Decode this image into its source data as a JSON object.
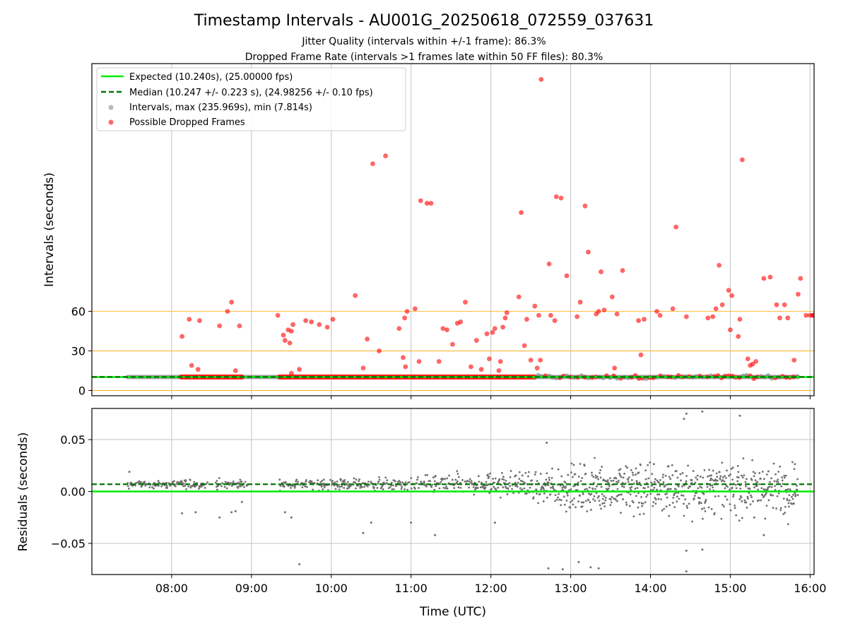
{
  "colors": {
    "expected": "#00ee00",
    "median": "#007700",
    "intervals": "#808080",
    "dropped": "#ff0000",
    "threshold": "#ffb833",
    "grid": "#c8c8c8"
  },
  "chart_data": [
    {
      "type": "scatter",
      "title": "Timestamp Intervals - AU001G_20250618_072559_037631",
      "subtitle_lines": [
        "Jitter Quality (intervals within +/-1 frame): 86.3%",
        "Dropped Frame Rate (intervals >1 frames late within 50 FF files): 80.3%"
      ],
      "xlabel": "",
      "ylabel": "Intervals (seconds)",
      "x_unit": "hours UTC",
      "xlim": [
        7.0,
        16.05
      ],
      "ylim": [
        -4,
        248
      ],
      "yticks": [
        0,
        30,
        60
      ],
      "ytick_labels": [
        "0",
        "30",
        "60"
      ],
      "grid": "vertical",
      "threshold_lines": [
        0,
        30,
        60
      ],
      "legend_position": "upper-left",
      "legend": [
        "Expected (10.240s), (25.00000 fps)",
        "Median (10.247 +/- 0.223 s), (24.98256 +/- 0.10 fps)",
        "Intervals, max (235.969s), min (7.814s)",
        "Possible Dropped Frames"
      ],
      "expected": 10.24,
      "median": 10.247,
      "normal_band": {
        "x_ranges": [
          [
            7.45,
            8.1
          ],
          [
            8.88,
            9.35
          ],
          [
            12.55,
            15.85
          ]
        ],
        "y": 10.24
      },
      "dropped_band": {
        "x_ranges": [
          [
            8.12,
            8.88
          ],
          [
            9.35,
            12.55
          ]
        ],
        "y": 10.24
      },
      "dropped_scatter": [
        [
          8.13,
          41
        ],
        [
          8.22,
          54
        ],
        [
          8.25,
          19
        ],
        [
          8.33,
          16
        ],
        [
          8.35,
          53
        ],
        [
          8.6,
          49
        ],
        [
          8.7,
          60
        ],
        [
          8.75,
          67
        ],
        [
          8.8,
          15
        ],
        [
          8.85,
          49
        ],
        [
          9.33,
          57
        ],
        [
          9.4,
          42
        ],
        [
          9.42,
          38
        ],
        [
          9.46,
          46
        ],
        [
          9.48,
          36
        ],
        [
          9.5,
          45
        ],
        [
          9.52,
          50
        ],
        [
          9.5,
          13
        ],
        [
          9.6,
          16
        ],
        [
          9.68,
          53
        ],
        [
          9.75,
          52
        ],
        [
          9.85,
          50
        ],
        [
          9.95,
          48
        ],
        [
          10.02,
          54
        ],
        [
          10.3,
          72
        ],
        [
          10.4,
          17
        ],
        [
          10.45,
          39
        ],
        [
          10.52,
          172
        ],
        [
          10.6,
          30
        ],
        [
          10.68,
          178
        ],
        [
          10.85,
          47
        ],
        [
          10.9,
          25
        ],
        [
          10.92,
          55
        ],
        [
          10.93,
          18
        ],
        [
          10.95,
          60
        ],
        [
          11.05,
          62
        ],
        [
          11.1,
          22
        ],
        [
          11.12,
          144
        ],
        [
          11.2,
          142
        ],
        [
          11.25,
          142
        ],
        [
          11.35,
          22
        ],
        [
          11.4,
          47
        ],
        [
          11.45,
          46
        ],
        [
          11.52,
          35
        ],
        [
          11.58,
          51
        ],
        [
          11.62,
          52
        ],
        [
          11.68,
          67
        ],
        [
          11.75,
          18
        ],
        [
          11.82,
          38
        ],
        [
          11.88,
          16
        ],
        [
          11.95,
          43
        ],
        [
          11.98,
          24
        ],
        [
          12.02,
          44
        ],
        [
          12.05,
          47
        ],
        [
          12.1,
          15
        ],
        [
          12.12,
          22
        ],
        [
          12.15,
          48
        ],
        [
          12.18,
          55
        ],
        [
          12.2,
          59
        ],
        [
          12.35,
          71
        ],
        [
          12.38,
          135
        ],
        [
          12.42,
          34
        ],
        [
          12.45,
          54
        ],
        [
          12.5,
          23
        ],
        [
          12.55,
          64
        ],
        [
          12.58,
          17
        ],
        [
          12.6,
          57
        ],
        [
          12.63,
          236
        ],
        [
          12.62,
          23
        ],
        [
          12.73,
          96
        ],
        [
          12.75,
          57
        ],
        [
          12.8,
          53
        ],
        [
          12.82,
          147
        ],
        [
          12.88,
          146
        ],
        [
          12.95,
          87
        ],
        [
          13.08,
          56
        ],
        [
          13.12,
          67
        ],
        [
          13.18,
          140
        ],
        [
          13.22,
          105
        ],
        [
          13.32,
          58
        ],
        [
          13.35,
          60
        ],
        [
          13.38,
          90
        ],
        [
          13.42,
          61
        ],
        [
          13.52,
          71
        ],
        [
          13.55,
          17
        ],
        [
          13.58,
          58
        ],
        [
          13.65,
          91
        ],
        [
          13.85,
          53
        ],
        [
          13.88,
          27
        ],
        [
          13.92,
          54
        ],
        [
          14.08,
          60
        ],
        [
          14.12,
          57
        ],
        [
          14.28,
          62
        ],
        [
          14.32,
          124
        ],
        [
          14.45,
          56
        ],
        [
          14.72,
          55
        ],
        [
          14.78,
          56
        ],
        [
          14.82,
          62
        ],
        [
          14.86,
          95
        ],
        [
          14.9,
          65
        ],
        [
          14.98,
          76
        ],
        [
          15.0,
          46
        ],
        [
          15.02,
          72
        ],
        [
          15.1,
          41
        ],
        [
          15.12,
          54
        ],
        [
          15.15,
          175
        ],
        [
          15.22,
          24
        ],
        [
          15.25,
          19
        ],
        [
          15.28,
          20
        ],
        [
          15.32,
          22
        ],
        [
          15.42,
          85
        ],
        [
          15.5,
          86
        ],
        [
          15.58,
          65
        ],
        [
          15.62,
          55
        ],
        [
          15.68,
          65
        ],
        [
          15.72,
          55
        ],
        [
          15.8,
          23
        ],
        [
          15.85,
          73
        ],
        [
          15.88,
          85
        ],
        [
          15.95,
          57
        ],
        [
          16.0,
          57
        ],
        [
          16.03,
          57
        ],
        [
          16.04,
          57
        ]
      ]
    },
    {
      "type": "scatter",
      "title": "",
      "xlabel": "Time (UTC)",
      "ylabel": "Residuals (seconds)",
      "x_unit": "hours UTC",
      "xlim": [
        7.0,
        16.05
      ],
      "ylim": [
        -0.08,
        0.08
      ],
      "xticks": [
        8,
        9,
        10,
        11,
        12,
        13,
        14,
        15,
        16
      ],
      "xtick_labels": [
        "08:00",
        "09:00",
        "10:00",
        "11:00",
        "12:00",
        "13:00",
        "14:00",
        "15:00",
        "16:00"
      ],
      "yticks": [
        -0.05,
        0.0,
        0.05
      ],
      "ytick_labels": [
        "−0.05",
        "0.00",
        "0.05"
      ],
      "grid": "both",
      "expected_residual": 0.0,
      "median_residual": 0.007,
      "spread_profile": [
        [
          7.45,
          0.002
        ],
        [
          8.5,
          0.0025
        ],
        [
          9.0,
          0.0025
        ],
        [
          10.0,
          0.003
        ],
        [
          11.0,
          0.004
        ],
        [
          11.8,
          0.006
        ],
        [
          12.5,
          0.008
        ],
        [
          13.0,
          0.013
        ],
        [
          14.0,
          0.016
        ],
        [
          15.0,
          0.015
        ],
        [
          15.85,
          0.014
        ]
      ],
      "outliers": [
        [
          7.47,
          0.019
        ],
        [
          8.13,
          -0.021
        ],
        [
          8.3,
          -0.02
        ],
        [
          8.6,
          -0.025
        ],
        [
          8.75,
          -0.02
        ],
        [
          8.8,
          -0.019
        ],
        [
          8.88,
          -0.01
        ],
        [
          9.42,
          -0.02
        ],
        [
          9.5,
          -0.025
        ],
        [
          9.6,
          -0.07
        ],
        [
          10.4,
          -0.04
        ],
        [
          10.5,
          -0.03
        ],
        [
          11.3,
          -0.042
        ],
        [
          11.0,
          -0.03
        ],
        [
          12.05,
          -0.03
        ],
        [
          12.7,
          0.047
        ],
        [
          12.72,
          -0.074
        ],
        [
          12.9,
          -0.075
        ],
        [
          13.1,
          -0.068
        ],
        [
          13.25,
          -0.073
        ],
        [
          13.35,
          -0.074
        ],
        [
          14.42,
          0.07
        ],
        [
          14.45,
          0.075
        ],
        [
          14.45,
          -0.057
        ],
        [
          14.45,
          -0.077
        ],
        [
          14.65,
          0.077
        ],
        [
          14.65,
          -0.056
        ],
        [
          15.12,
          0.073
        ],
        [
          15.42,
          -0.042
        ],
        [
          15.3,
          -0.025
        ]
      ]
    }
  ]
}
